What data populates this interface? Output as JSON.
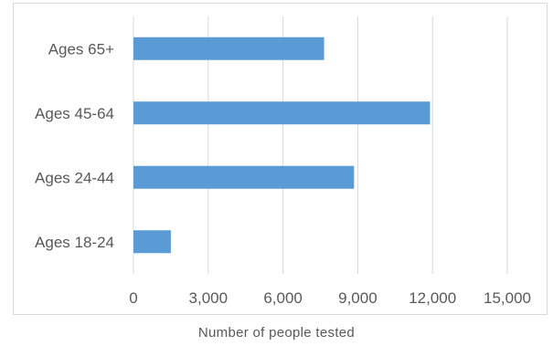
{
  "chart_data": {
    "type": "bar",
    "orientation": "horizontal",
    "categories": [
      "Ages 18-24",
      "Ages 24-44",
      "Ages 45-64",
      "Ages 65+"
    ],
    "values": [
      1500,
      8850,
      11900,
      7650
    ],
    "xlabel": "Number of people tested",
    "ylabel": "",
    "xlim": [
      0,
      15000
    ],
    "xticks": [
      0,
      3000,
      6000,
      9000,
      12000,
      15000
    ],
    "xtick_labels": [
      "0",
      "3,000",
      "6,000",
      "9,000",
      "12,000",
      "15,000"
    ],
    "grid": "vertical",
    "legend": "none",
    "colors": {
      "bar": "#5b9bd5",
      "grid": "#d9d9d9",
      "text": "#595959"
    }
  }
}
